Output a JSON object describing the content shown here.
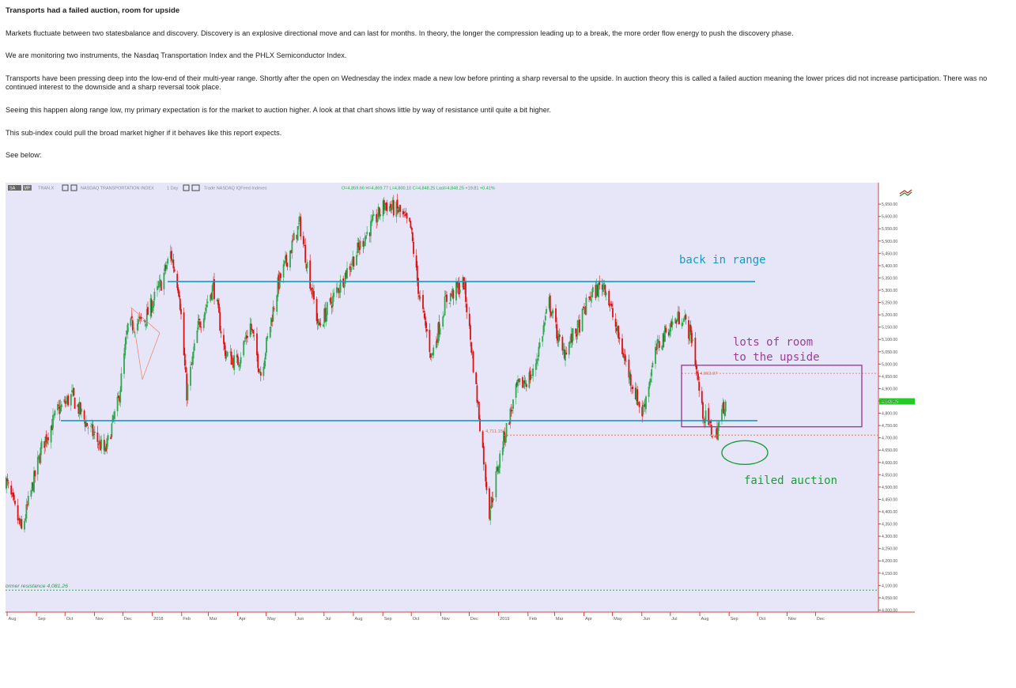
{
  "article": {
    "title": "Transports had a failed auction, room for upside",
    "paragraphs": [
      "Markets fluctuate between two statesbalance and discovery.  Discovery is an explosive directional move and can last for months.  In theory, the longer the compression leading up to a break, the more order flow energy to push the discovery phase.",
      "We are monitoring two instruments, the Nasdaq Transportation Index and the PHLX Semiconductor Index.",
      "Transports have been pressing deep into the low-end of their multi-year range.  Shortly after the open on Wednesday the index made a new low before printing a sharp reversal to the upside.  In auction theory this is called a failed auction meaning the lower prices did not increase participation.  There was no continued interest to the downside and a sharp reversal took place.",
      "Seeing this happen along range low, my primary expectation is for the market to auction higher.  A look at that chart shows little by way of resistance until quite a bit higher.",
      "This sub-index could pull the broad market higher if it behaves like this report expects.",
      "See below:"
    ]
  },
  "chart_toolbar": {
    "btn1": "SA",
    "btn2": "VP",
    "symbol": "TRAN.X",
    "description": "NASDAQ TRANSPORTATION INDEX",
    "interval": "1 Day",
    "source": "Trade NASDAQ IQFeed Indexes",
    "ohlc": "O=4,859.66   H=4,869.77   L=4,800.10   C=4,848.25  Last=4,848.25  +19.81  +0.41%"
  },
  "chart_data": {
    "type": "candlestick",
    "title": "TRAN.X NASDAQ TRANSPORTATION INDEX 1 Day",
    "x_tick_labels": [
      "Aug",
      "Sep",
      "Oct",
      "Nov",
      "Dec",
      "2018",
      "Feb",
      "Mar",
      "Apr",
      "May",
      "Jun",
      "Jul",
      "Aug",
      "Sep",
      "Oct",
      "Nov",
      "Dec",
      "2019",
      "Feb",
      "Mar",
      "Apr",
      "May",
      "Jun",
      "Jul",
      "Aug",
      "Sep",
      "Oct",
      "Nov",
      "Dec"
    ],
    "y_tick_labels": [
      "5,650.00",
      "5,600.00",
      "5,550.00",
      "5,500.00",
      "5,450.00",
      "5,400.00",
      "5,350.00",
      "5,300.00",
      "5,250.00",
      "5,200.00",
      "5,150.00",
      "5,100.00",
      "5,050.00",
      "5,000.00",
      "4,950.00",
      "4,900.00",
      "4,850.00",
      "4,800.00",
      "4,750.00",
      "4,700.00",
      "4,650.00",
      "4,600.00",
      "4,550.00",
      "4,500.00",
      "4,450.00",
      "4,400.00",
      "4,350.00",
      "4,300.00",
      "4,250.00",
      "4,200.00",
      "4,150.00",
      "4,100.00",
      "4,050.00",
      "4,000.00"
    ],
    "ylim": [
      3995,
      5705
    ],
    "last_price_label": "4,848.25",
    "price_path": [
      [
        "2017-08-01",
        4530
      ],
      [
        "2017-08-18",
        4320
      ],
      [
        "2017-09-08",
        4660
      ],
      [
        "2017-09-25",
        4810
      ],
      [
        "2017-10-10",
        4870
      ],
      [
        "2017-10-25",
        4760
      ],
      [
        "2017-11-14",
        4640
      ],
      [
        "2017-11-28",
        4850
      ],
      [
        "2017-12-08",
        5150
      ],
      [
        "2017-12-26",
        5180
      ],
      [
        "2018-01-12",
        5330
      ],
      [
        "2018-01-22",
        5450
      ],
      [
        "2018-01-31",
        5300
      ],
      [
        "2018-02-08",
        4880
      ],
      [
        "2018-02-20",
        5150
      ],
      [
        "2018-03-08",
        5320
      ],
      [
        "2018-03-20",
        5050
      ],
      [
        "2018-04-02",
        5000
      ],
      [
        "2018-04-16",
        5160
      ],
      [
        "2018-04-27",
        4960
      ],
      [
        "2018-05-15",
        5320
      ],
      [
        "2018-06-07",
        5570
      ],
      [
        "2018-06-27",
        5150
      ],
      [
        "2018-07-10",
        5250
      ],
      [
        "2018-07-27",
        5380
      ],
      [
        "2018-08-15",
        5520
      ],
      [
        "2018-09-05",
        5650
      ],
      [
        "2018-09-20",
        5620
      ],
      [
        "2018-10-02",
        5550
      ],
      [
        "2018-10-11",
        5280
      ],
      [
        "2018-10-24",
        5030
      ],
      [
        "2018-11-08",
        5260
      ],
      [
        "2018-11-27",
        5330
      ],
      [
        "2018-12-04",
        5100
      ],
      [
        "2018-12-14",
        4760
      ],
      [
        "2018-12-24",
        4400
      ],
      [
        "2019-01-07",
        4680
      ],
      [
        "2019-01-22",
        4900
      ],
      [
        "2019-02-08",
        4960
      ],
      [
        "2019-02-25",
        5250
      ],
      [
        "2019-03-11",
        5040
      ],
      [
        "2019-03-28",
        5150
      ],
      [
        "2019-04-08",
        5270
      ],
      [
        "2019-04-24",
        5330
      ],
      [
        "2019-05-06",
        5150
      ],
      [
        "2019-05-20",
        4960
      ],
      [
        "2019-06-03",
        4800
      ],
      [
        "2019-06-18",
        5060
      ],
      [
        "2019-07-01",
        5150
      ],
      [
        "2019-07-15",
        5200
      ],
      [
        "2019-07-26",
        5100
      ],
      [
        "2019-08-05",
        4810
      ],
      [
        "2019-08-19",
        4700
      ],
      [
        "2019-08-28",
        4830
      ],
      [
        "2019-08-30",
        4848
      ]
    ],
    "annotations": {
      "back_in_range": "back in range",
      "room": "lots of room to the upside",
      "failed": "failed auction",
      "former_resistance": "former resistance 4,081.26",
      "level_high": "4,962.07",
      "level_low": "4,711.15"
    },
    "levels": {
      "range_high": 5335,
      "range_low": 4770,
      "dotted_high": 4962.07,
      "dotted_low": 4711.15,
      "former_resistance": 4081.26
    },
    "grid": false,
    "legend": "none"
  },
  "colors": {
    "plot_bg": "#e6e6f8",
    "up": "#2fa84f",
    "down": "#dd1111",
    "range_line": "#1599c9",
    "room_box": "#9a3f98",
    "failed_circle": "#1c9c38",
    "last_price_tag": "#22cc22",
    "dotted_line": "#e06a5a",
    "resistance_line": "#2b9c4b",
    "triangle": "#f08060"
  }
}
